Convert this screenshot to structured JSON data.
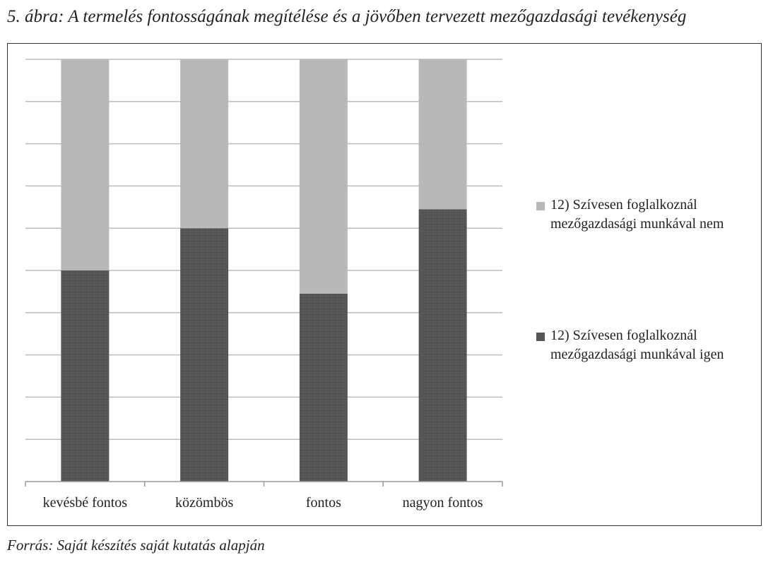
{
  "figure": {
    "title": "5. ábra: A termelés fontosságának megítélése és a jövőben tervezett mezőgazdasági tevékenység",
    "source": "Forrás: Saját készítés saját kutatás alapján"
  },
  "chart_data": {
    "type": "bar",
    "stacked": true,
    "normalized": true,
    "categories": [
      "kevésbé fontos",
      "közömbös",
      "fontos",
      "nagyon fontos"
    ],
    "series": [
      {
        "name": "12) Szívesen foglalkoznál mezőgazdasági munkával igen",
        "values": [
          0.5,
          0.6,
          0.445,
          0.645
        ],
        "color": "#555555"
      },
      {
        "name": "12) Szívesen foglalkoznál mezőgazdasági munkával nem",
        "values": [
          0.5,
          0.4,
          0.555,
          0.355
        ],
        "color": "#b8b8b8"
      }
    ],
    "ylim": [
      0,
      1
    ],
    "grid": true,
    "legend": "right",
    "legend_order": [
      1,
      0
    ]
  }
}
